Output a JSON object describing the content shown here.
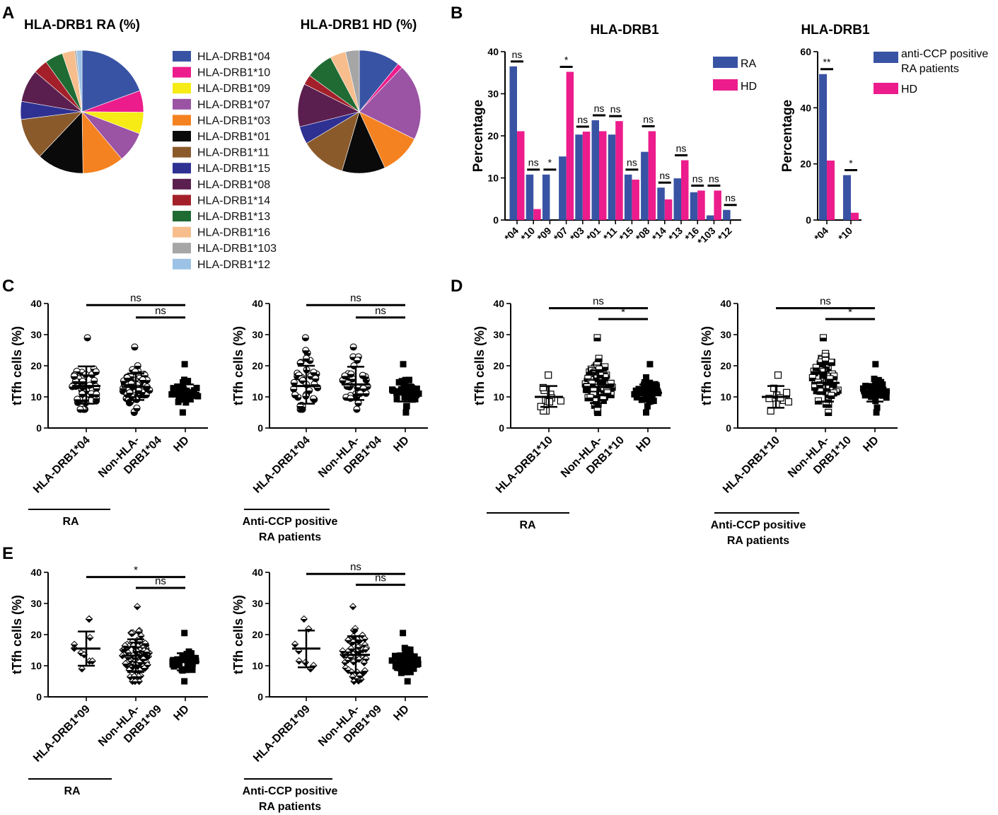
{
  "panel_labels": {
    "a": "A",
    "b": "B",
    "c": "C",
    "d": "D",
    "e": "E"
  },
  "colors": {
    "ra": "#3953a4",
    "hd": "#ec1c8c"
  },
  "chart_data": [
    {
      "id": "A1",
      "type": "pie",
      "title": "HLA-DRB1 RA (%)",
      "labels": [
        "HLA-DRB1*04",
        "HLA-DRB1*10",
        "HLA-DRB1*09",
        "HLA-DRB1*07",
        "HLA-DRB1*03",
        "HLA-DRB1*01",
        "HLA-DRB1*11",
        "HLA-DRB1*15",
        "HLA-DRB1*08",
        "HLA-DRB1*14",
        "HLA-DRB1*13",
        "HLA-DRB1*16",
        "HLA-DRB1*103",
        "HLA-DRB1*12"
      ],
      "values": [
        20.5,
        6.0,
        6.0,
        8.5,
        11.5,
        13.0,
        11.5,
        5.0,
        9.0,
        4.0,
        5.0,
        3.5,
        0.5,
        1.5
      ],
      "colors": [
        "#3953a4",
        "#ec1c8c",
        "#f6eb14",
        "#9b53a4",
        "#f58220",
        "#0a0a0a",
        "#8b5a2b",
        "#2e3192",
        "#5b1f4f",
        "#a3202a",
        "#1f6b33",
        "#f7bd8c",
        "#a6a6a6",
        "#9cc3e6"
      ]
    },
    {
      "id": "A2",
      "type": "pie",
      "title": "HLA-DRB1 HD (%)",
      "labels": [
        "HLA-DRB1*04",
        "HLA-DRB1*10",
        "HLA-DRB1*09",
        "HLA-DRB1*07",
        "HLA-DRB1*03",
        "HLA-DRB1*01",
        "HLA-DRB1*11",
        "HLA-DRB1*15",
        "HLA-DRB1*08",
        "HLA-DRB1*14",
        "HLA-DRB1*13",
        "HLA-DRB1*16",
        "HLA-DRB1*103",
        "HLA-DRB1*12"
      ],
      "values": [
        10.5,
        1.3,
        0.0,
        19.5,
        10.5,
        11.0,
        11.5,
        4.5,
        11.0,
        2.5,
        7.0,
        4.0,
        3.5,
        0.0
      ],
      "colors": [
        "#3953a4",
        "#ec1c8c",
        "#f6eb14",
        "#9b53a4",
        "#f58220",
        "#0a0a0a",
        "#8b5a2b",
        "#2e3192",
        "#5b1f4f",
        "#a3202a",
        "#1f6b33",
        "#f7bd8c",
        "#a6a6a6",
        "#9cc3e6"
      ]
    },
    {
      "id": "B1",
      "type": "bar",
      "title": "HLA-DRB1",
      "ylabel": "Percentage",
      "ylim": [
        0,
        40
      ],
      "yticks": [
        0,
        10,
        20,
        30,
        40
      ],
      "categories": [
        "*04",
        "*10",
        "*09",
        "*07",
        "*03",
        "*01",
        "*11",
        "*15",
        "*08",
        "*14",
        "*13",
        "*16",
        "*103",
        "*12"
      ],
      "series": [
        {
          "name": "RA",
          "values": [
            36.5,
            10.8,
            10.8,
            15.1,
            20.3,
            23.7,
            20.3,
            10.8,
            16.2,
            7.7,
            9.9,
            6.6,
            1.1,
            2.4
          ]
        },
        {
          "name": "HD",
          "values": [
            21.1,
            2.6,
            0,
            35.2,
            21.0,
            21.1,
            23.5,
            9.6,
            21.1,
            4.9,
            14.2,
            7.0,
            7.0,
            0
          ]
        }
      ],
      "significance": [
        "ns",
        "ns",
        "*",
        "*",
        "ns",
        "ns",
        "ns",
        "ns",
        "ns",
        "ns",
        "ns",
        "ns",
        "ns",
        "ns"
      ]
    },
    {
      "id": "B2",
      "type": "bar",
      "title": "HLA-DRB1",
      "ylabel": "Percentage",
      "ylim": [
        0,
        60
      ],
      "yticks": [
        0,
        20,
        40,
        60
      ],
      "categories": [
        "*04",
        "*10"
      ],
      "series": [
        {
          "name": "anti-CCP positive RA patients",
          "values": [
            52.0,
            16.0
          ]
        },
        {
          "name": "HD",
          "values": [
            21.2,
            2.6
          ]
        }
      ],
      "significance": [
        "**",
        "*"
      ]
    },
    {
      "id": "C1",
      "type": "scatter",
      "panel": "C",
      "ylabel": "tTfh cells (%)",
      "ylim": [
        0,
        40
      ],
      "yticks": [
        0,
        10,
        20,
        30,
        40
      ],
      "categories": [
        "HLA-DRB1*04",
        "Non-HLA-DRB1*04",
        "HD"
      ],
      "group_label": "RA",
      "marker": [
        "half-circle",
        "half-circle",
        "square"
      ],
      "means": [
        13.5,
        13.2,
        11.3
      ],
      "sd_upper": [
        19.8,
        17.5,
        14.0
      ],
      "sd_lower": [
        7.8,
        9.0,
        8.5
      ],
      "ranges": [
        [
          6,
          29
        ],
        [
          5,
          26
        ],
        [
          5,
          20.5
        ]
      ],
      "n": [
        44,
        60,
        42
      ],
      "comparisons": [
        {
          "label": "ns",
          "from": 0,
          "to": 2,
          "y": 39.5
        },
        {
          "label": "ns",
          "from": 1,
          "to": 2,
          "y": 35.5
        }
      ]
    },
    {
      "id": "C2",
      "type": "scatter",
      "panel": "C",
      "ylabel": "tTfh cells (%)",
      "ylim": [
        0,
        40
      ],
      "yticks": [
        0,
        10,
        20,
        30,
        40
      ],
      "categories": [
        "HLA-DRB1*04",
        "Non-HLA-DRB1*04",
        "HD"
      ],
      "group_label": "Anti-CCP positive RA patients",
      "marker": [
        "half-circle",
        "half-circle",
        "square"
      ],
      "means": [
        13.5,
        14.0,
        11.3
      ],
      "sd_upper": [
        20.0,
        19.7,
        14.0
      ],
      "sd_lower": [
        7.8,
        9.0,
        8.5
      ],
      "ranges": [
        [
          6,
          29
        ],
        [
          6,
          26
        ],
        [
          5,
          20.5
        ]
      ],
      "n": [
        36,
        30,
        42
      ],
      "comparisons": [
        {
          "label": "ns",
          "from": 0,
          "to": 2,
          "y": 39.5
        },
        {
          "label": "ns",
          "from": 1,
          "to": 2,
          "y": 35.5
        }
      ]
    },
    {
      "id": "D1",
      "type": "scatter",
      "panel": "D",
      "ylabel": "tTfh cells (%)",
      "ylim": [
        0,
        40
      ],
      "yticks": [
        0,
        10,
        20,
        30,
        40
      ],
      "categories": [
        "HLA-DRB1*10",
        "Non-HLA-DRB1*10",
        "HD"
      ],
      "group_label": "RA",
      "marker": [
        "open-square",
        "half-square",
        "square"
      ],
      "means": [
        10.0,
        13.2,
        11.3
      ],
      "sd_upper": [
        13.5,
        18.5,
        14.0
      ],
      "sd_lower": [
        6.8,
        8.0,
        8.5
      ],
      "ranges": [
        [
          5.5,
          17
        ],
        [
          5,
          29
        ],
        [
          5,
          20.5
        ]
      ],
      "n": [
        12,
        90,
        42
      ],
      "comparisons": [
        {
          "label": "ns",
          "from": 0,
          "to": 2,
          "y": 38.5
        },
        {
          "label": "*",
          "from": 1,
          "to": 2,
          "y": 35
        }
      ]
    },
    {
      "id": "D2",
      "type": "scatter",
      "panel": "D",
      "ylabel": "tTfh cells (%)",
      "ylim": [
        0,
        40
      ],
      "yticks": [
        0,
        10,
        20,
        30,
        40
      ],
      "categories": [
        "HLA-DRB1*10",
        "Non-HLA-DRB1*10",
        "HD"
      ],
      "group_label": "Anti-CCP positive RA patients",
      "marker": [
        "open-square",
        "half-square",
        "square"
      ],
      "means": [
        10.0,
        14.5,
        11.3
      ],
      "sd_upper": [
        13.5,
        20.5,
        14.0
      ],
      "sd_lower": [
        6.5,
        8.5,
        8.5
      ],
      "ranges": [
        [
          5.5,
          17
        ],
        [
          5,
          29
        ],
        [
          5,
          20.5
        ]
      ],
      "n": [
        10,
        60,
        42
      ],
      "comparisons": [
        {
          "label": "ns",
          "from": 0,
          "to": 2,
          "y": 38.5
        },
        {
          "label": "*",
          "from": 1,
          "to": 2,
          "y": 35
        }
      ]
    },
    {
      "id": "E1",
      "type": "scatter",
      "panel": "E",
      "ylabel": "tTfh cells (%)",
      "ylim": [
        0,
        40
      ],
      "yticks": [
        0,
        10,
        20,
        30,
        40
      ],
      "categories": [
        "HLA-DRB1*09",
        "Non-HLA-DRB1*09",
        "HD"
      ],
      "group_label": "RA",
      "marker": [
        "half-diamond",
        "half-diamond",
        "square"
      ],
      "means": [
        15.5,
        13.2,
        11.3
      ],
      "sd_upper": [
        21.0,
        18.5,
        14.0
      ],
      "sd_lower": [
        10.0,
        8.0,
        8.5
      ],
      "ranges": [
        [
          9,
          25
        ],
        [
          5,
          29
        ],
        [
          5,
          20.5
        ]
      ],
      "n": [
        10,
        90,
        42
      ],
      "comparisons": [
        {
          "label": "*",
          "from": 0,
          "to": 2,
          "y": 38.5
        },
        {
          "label": "ns",
          "from": 1,
          "to": 2,
          "y": 35
        }
      ]
    },
    {
      "id": "E2",
      "type": "scatter",
      "panel": "E",
      "ylabel": "tTfh cells (%)",
      "ylim": [
        0,
        40
      ],
      "yticks": [
        0,
        10,
        20,
        30,
        40
      ],
      "categories": [
        "HLA-DRB1*09",
        "Non-HLA-DRB1*09",
        "HD"
      ],
      "group_label": "Anti-CCP positive RA patients",
      "marker": [
        "half-diamond",
        "half-diamond",
        "square"
      ],
      "means": [
        15.5,
        13.5,
        11.3
      ],
      "sd_upper": [
        21.3,
        19.5,
        14.0
      ],
      "sd_lower": [
        9.5,
        7.8,
        8.5
      ],
      "ranges": [
        [
          9,
          25
        ],
        [
          5,
          29
        ],
        [
          5,
          20.5
        ]
      ],
      "n": [
        8,
        60,
        42
      ],
      "comparisons": [
        {
          "label": "ns",
          "from": 0,
          "to": 2,
          "y": 39.5
        },
        {
          "label": "ns",
          "from": 1,
          "to": 2,
          "y": 36
        }
      ]
    }
  ]
}
